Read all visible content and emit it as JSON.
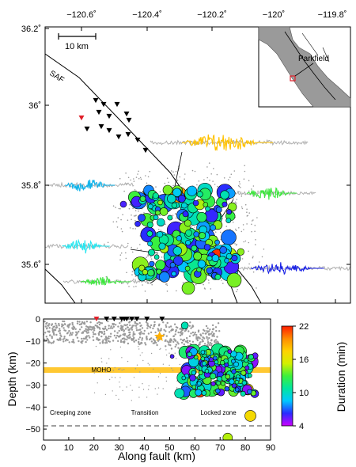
{
  "map": {
    "lon_ticks": [
      "−120.6˚",
      "−120.4˚",
      "−120.2˚",
      "−120˚",
      "−119.8˚"
    ],
    "lat_ticks": [
      "36.2˚",
      "36˚",
      "35.8˚",
      "35.6˚"
    ],
    "scalebar_label": "10 km",
    "fault_label": "SAF",
    "inset_label": "Parkfield"
  },
  "section": {
    "xlabel": "Along fault (km)",
    "ylabel": "Depth (km)",
    "xticks": [
      "0",
      "10",
      "20",
      "30",
      "40",
      "50",
      "60",
      "70",
      "80",
      "90"
    ],
    "yticks": [
      "0",
      "−10",
      "−20",
      "−30",
      "−40",
      "−50"
    ],
    "moho_label": "MOHO",
    "zones": [
      "Creeping zone",
      "Transition",
      "Locked zone"
    ]
  },
  "colorbar": {
    "label": "Duration (min)",
    "ticks": [
      "22",
      "16",
      "10",
      "4"
    ],
    "min": 4,
    "max": 22,
    "colors": [
      "#cc00ff",
      "#2a2aff",
      "#00c8ff",
      "#00e6a0",
      "#3cf03c",
      "#d2f000",
      "#ffd200",
      "#ff8c00",
      "#ff1e00"
    ]
  },
  "colors": {
    "station": "#000000",
    "station_red": "#e0202a",
    "moho": "#ffc832",
    "star": "#ffb000",
    "background_events": "#9a9a9a"
  }
}
